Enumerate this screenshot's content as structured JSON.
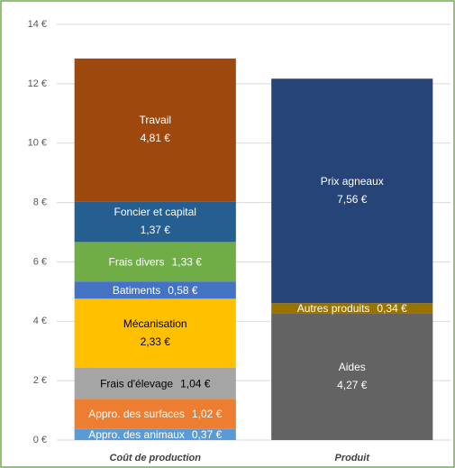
{
  "chart_data": {
    "type": "stacked_bar",
    "categories": [
      "Coût de production",
      "Produit"
    ],
    "ylim": [
      0,
      14
    ],
    "yticks": [
      {
        "value": 0,
        "label": "0 €"
      },
      {
        "value": 2,
        "label": "2 €"
      },
      {
        "value": 4,
        "label": "4 €"
      },
      {
        "value": 6,
        "label": "6 €"
      },
      {
        "value": 8,
        "label": "8 €"
      },
      {
        "value": 10,
        "label": "10 €"
      },
      {
        "value": 12,
        "label": "12 €"
      },
      {
        "value": 14,
        "label": "14 €"
      }
    ],
    "grid": true,
    "series": [
      {
        "name": "Appro. des animaux",
        "color": "#5b9bd5",
        "values": [
          0.37,
          null
        ],
        "value_labels": [
          "0,37 €",
          null
        ]
      },
      {
        "name": "Appro. des surfaces",
        "color": "#ed7d31",
        "values": [
          1.02,
          null
        ],
        "value_labels": [
          "1,02 €",
          null
        ]
      },
      {
        "name": "Frais d'élevage",
        "color": "#a5a5a5",
        "values": [
          1.04,
          null
        ],
        "value_labels": [
          "1,04 €",
          null
        ]
      },
      {
        "name": "Mécanisation",
        "color": "#ffc000",
        "values": [
          2.33,
          null
        ],
        "value_labels": [
          "2,33 €",
          null
        ]
      },
      {
        "name": "Batiments",
        "color": "#4472c4",
        "values": [
          0.58,
          null
        ],
        "value_labels": [
          "0,58 €",
          null
        ]
      },
      {
        "name": "Frais divers",
        "color": "#70ad47",
        "values": [
          1.33,
          null
        ],
        "value_labels": [
          "1,33 €",
          null
        ]
      },
      {
        "name": "Foncier et capital",
        "color": "#255e91",
        "values": [
          1.37,
          null
        ],
        "value_labels": [
          "1,37 €",
          null
        ]
      },
      {
        "name": "Travail",
        "color": "#9e480e",
        "values": [
          4.81,
          null
        ],
        "value_labels": [
          "4,81 €",
          null
        ]
      },
      {
        "name": "Aides",
        "color": "#636363",
        "values": [
          null,
          4.27
        ],
        "value_labels": [
          null,
          "4,27 €"
        ]
      },
      {
        "name": "Autres produits",
        "color": "#997300",
        "values": [
          null,
          0.34
        ],
        "value_labels": [
          null,
          "0,34 €"
        ]
      },
      {
        "name": "Prix agneaux",
        "color": "#264478",
        "values": [
          null,
          7.56
        ],
        "value_labels": [
          null,
          "7,56 €"
        ]
      }
    ]
  }
}
